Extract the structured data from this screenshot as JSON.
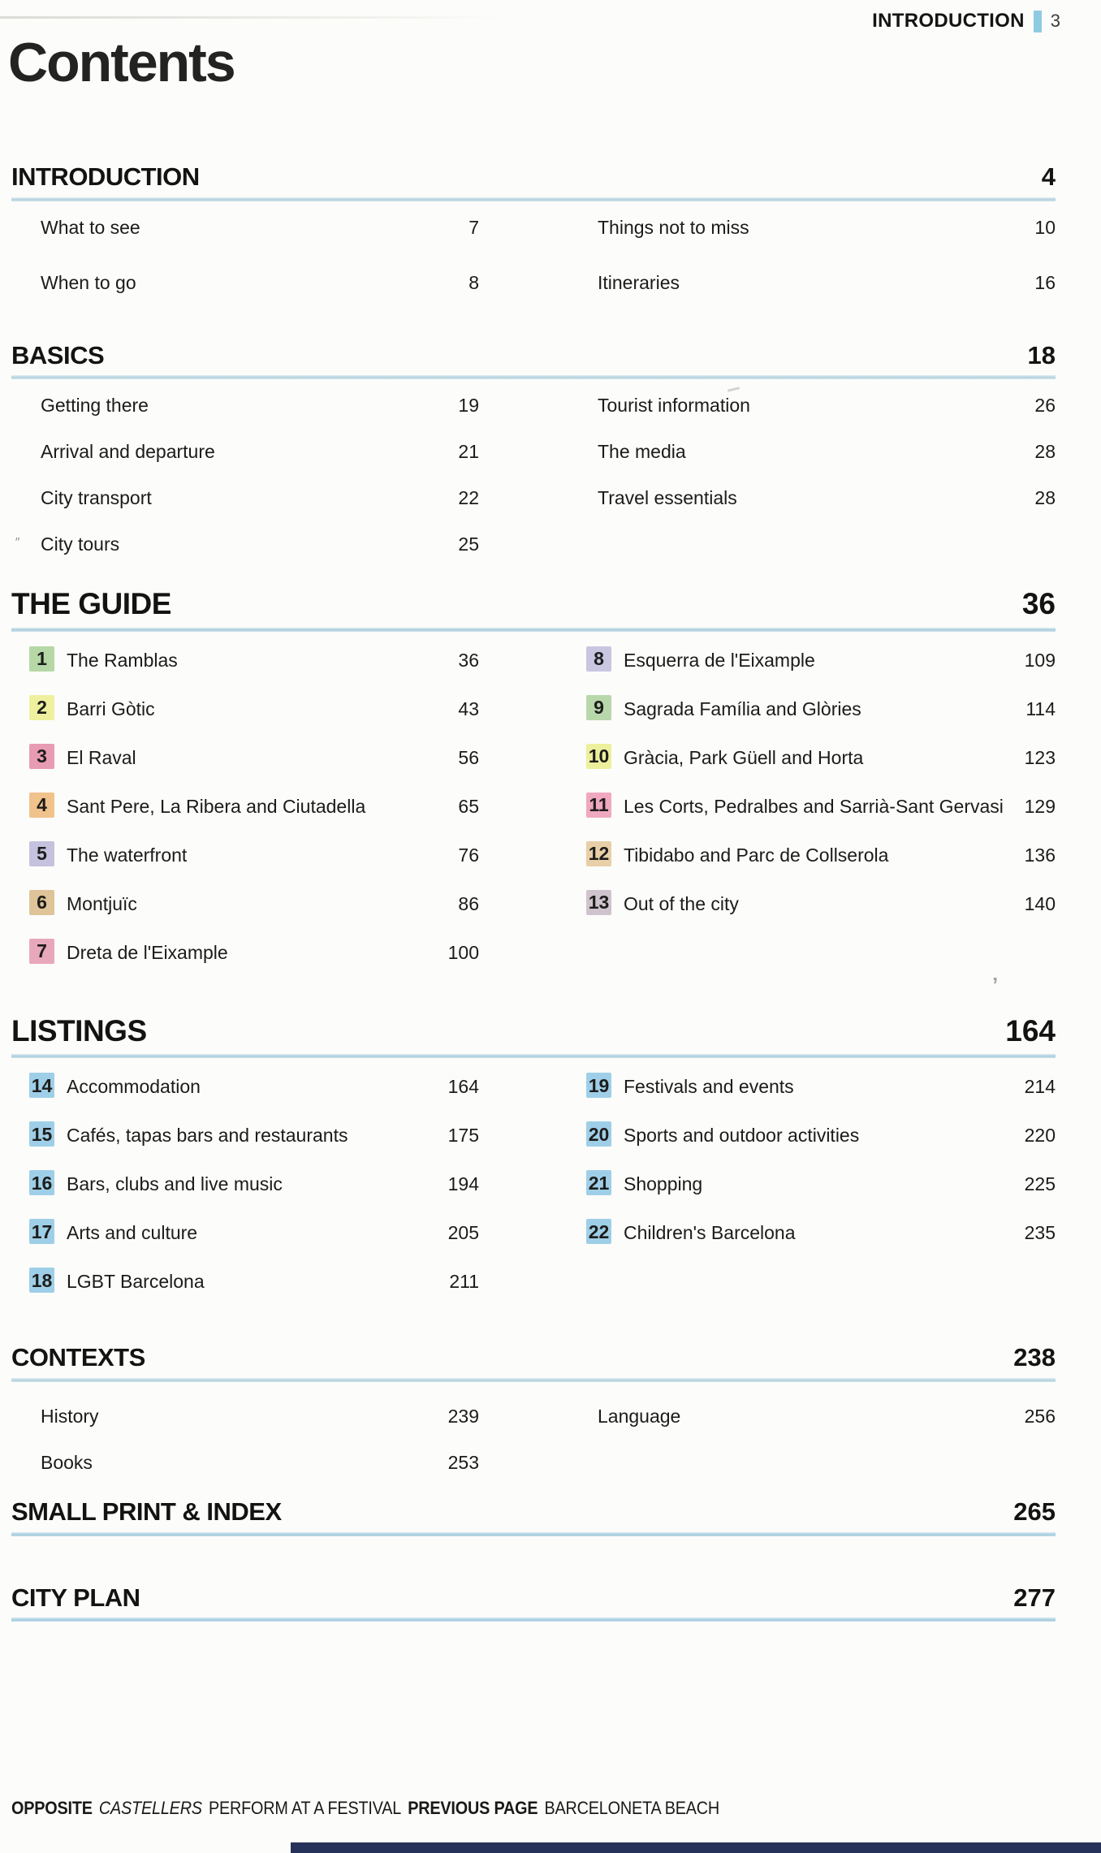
{
  "page_header": {
    "section": "INTRODUCTION",
    "page_number": "3"
  },
  "title": "Contents",
  "colors": {
    "header_bar": "#8ecbe2",
    "rule_blue": "#b2d1de",
    "listings_badge_blue": "#9fcfe8",
    "bottom_bar_navy": "#26325a"
  },
  "sections": [
    {
      "id": "introduction",
      "heading": "INTRODUCTION",
      "page": "4",
      "columns": [
        [
          {
            "label": "What to see",
            "page": "7"
          },
          {
            "label": "When to go",
            "page": "8"
          }
        ],
        [
          {
            "label": "Things not to miss",
            "page": "10"
          },
          {
            "label": "Itineraries",
            "page": "16"
          }
        ]
      ]
    },
    {
      "id": "basics",
      "heading": "BASICS",
      "page": "18",
      "columns": [
        [
          {
            "label": "Getting there",
            "page": "19"
          },
          {
            "label": "Arrival and departure",
            "page": "21"
          },
          {
            "label": "City transport",
            "page": "22"
          },
          {
            "label": "City tours",
            "page": "25"
          }
        ],
        [
          {
            "label": "Tourist information",
            "page": "26"
          },
          {
            "label": "The media",
            "page": "28"
          },
          {
            "label": "Travel essentials",
            "page": "28"
          }
        ]
      ]
    },
    {
      "id": "the-guide",
      "heading": "THE GUIDE",
      "page": "36",
      "columns": [
        [
          {
            "num": "1",
            "color": "#b5d8a6",
            "label": "The Ramblas",
            "page": "36"
          },
          {
            "num": "2",
            "color": "#eff09e",
            "label": "Barri Gòtic",
            "page": "43"
          },
          {
            "num": "3",
            "color": "#e89cb4",
            "label": "El Raval",
            "page": "56"
          },
          {
            "num": "4",
            "color": "#f0c28c",
            "label": "Sant Pere, La Ribera and Ciutadella",
            "page": "65"
          },
          {
            "num": "5",
            "color": "#c4c2de",
            "label": "The waterfront",
            "page": "76"
          },
          {
            "num": "6",
            "color": "#dfc49a",
            "label": "Montjuïc",
            "page": "86"
          },
          {
            "num": "7",
            "color": "#e8a8bc",
            "label": "Dreta de l'Eixample",
            "page": "100"
          }
        ],
        [
          {
            "num": "8",
            "color": "#c8c6e0",
            "label": "Esquerra de l'Eixample",
            "page": "109"
          },
          {
            "num": "9",
            "color": "#b8d8ac",
            "label": "Sagrada Família and Glòries",
            "page": "114"
          },
          {
            "num": "10",
            "color": "#ecf09c",
            "label": "Gràcia, Park Güell and Horta",
            "page": "123"
          },
          {
            "num": "11",
            "color": "#f0a8c0",
            "label": "Les Corts, Pedralbes and Sarrià-Sant Gervasi",
            "page": "129"
          },
          {
            "num": "12",
            "color": "#e8cfa8",
            "label": "Tibidabo and Parc de Collserola",
            "page": "136"
          },
          {
            "num": "13",
            "color": "#cfc4ce",
            "label": "Out of the city",
            "page": "140"
          }
        ]
      ]
    },
    {
      "id": "listings",
      "heading": "LISTINGS",
      "page": "164",
      "columns": [
        [
          {
            "num": "14",
            "color": "#9fcfe8",
            "label": "Accommodation",
            "page": "164"
          },
          {
            "num": "15",
            "color": "#9fcfe8",
            "label": "Cafés, tapas bars and restaurants",
            "page": "175"
          },
          {
            "num": "16",
            "color": "#9fcfe8",
            "label": "Bars, clubs and live music",
            "page": "194"
          },
          {
            "num": "17",
            "color": "#9fcfe8",
            "label": "Arts and culture",
            "page": "205"
          },
          {
            "num": "18",
            "color": "#9fcfe8",
            "label": "LGBT Barcelona",
            "page": "211"
          }
        ],
        [
          {
            "num": "19",
            "color": "#9fcfe8",
            "label": "Festivals and events",
            "page": "214"
          },
          {
            "num": "20",
            "color": "#9fcfe8",
            "label": "Sports and outdoor activities",
            "page": "220"
          },
          {
            "num": "21",
            "color": "#9fcfe8",
            "label": "Shopping",
            "page": "225"
          },
          {
            "num": "22",
            "color": "#9fcfe8",
            "label": "Children's Barcelona",
            "page": "235"
          }
        ]
      ]
    },
    {
      "id": "contexts",
      "heading": "CONTEXTS",
      "page": "238",
      "columns": [
        [
          {
            "label": "History",
            "page": "239"
          },
          {
            "label": "Books",
            "page": "253"
          }
        ],
        [
          {
            "label": "Language",
            "page": "256"
          }
        ]
      ]
    },
    {
      "id": "small-print-index",
      "heading": "SMALL PRINT & INDEX",
      "page": "265",
      "columns": [
        [],
        []
      ]
    },
    {
      "id": "city-plan",
      "heading": "CITY PLAN",
      "page": "277",
      "columns": [
        [],
        []
      ]
    }
  ],
  "caption": {
    "segments": [
      {
        "text": "OPPOSITE",
        "bold": true
      },
      {
        "text": "CASTELLERS",
        "italic": true
      },
      {
        "text": "PERFORM AT A FESTIVAL"
      },
      {
        "text": "PREVIOUS PAGE",
        "bold": true
      },
      {
        "text": "BARCELONETA BEACH"
      }
    ]
  }
}
